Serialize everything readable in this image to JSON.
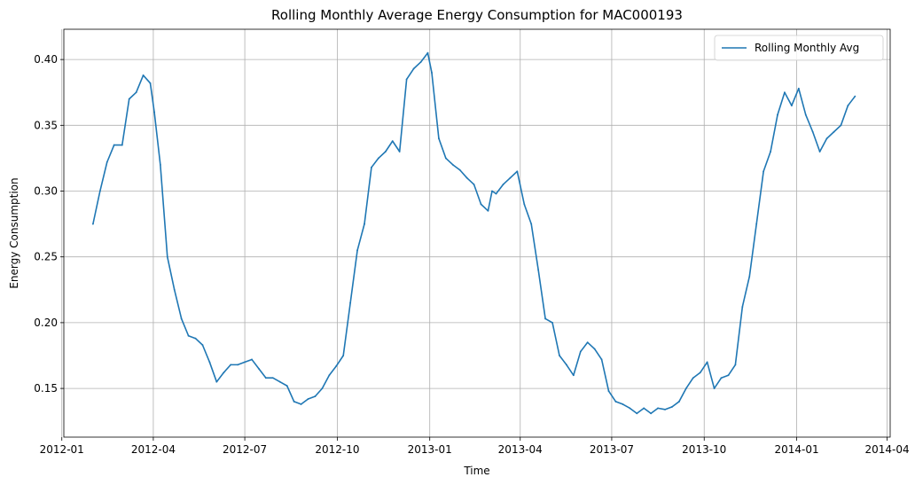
{
  "chart_data": {
    "type": "line",
    "title": "Rolling Monthly Average Energy Consumption for MAC000193",
    "xlabel": "Time",
    "ylabel": "Energy Consumption",
    "grid": true,
    "legend_placement": "top-right",
    "xlim": [
      "2012-01-03",
      "2014-04-04"
    ],
    "ylim": [
      0.113,
      0.423
    ],
    "x_ticks": [
      "2012-01",
      "2012-04",
      "2012-07",
      "2012-10",
      "2013-01",
      "2013-04",
      "2013-07",
      "2013-10",
      "2014-01",
      "2014-04"
    ],
    "y_ticks": [
      0.15,
      0.2,
      0.25,
      0.3,
      0.35,
      0.4
    ],
    "y_tick_labels": [
      "0.15",
      "0.20",
      "0.25",
      "0.30",
      "0.35",
      "0.40"
    ],
    "series": [
      {
        "name": "Rolling Monthly Avg",
        "color": "#1f77b4",
        "x": [
          "2012-02-01",
          "2012-02-08",
          "2012-02-15",
          "2012-02-22",
          "2012-03-01",
          "2012-03-08",
          "2012-03-15",
          "2012-03-22",
          "2012-03-29",
          "2012-04-02",
          "2012-04-08",
          "2012-04-15",
          "2012-04-22",
          "2012-04-29",
          "2012-05-06",
          "2012-05-13",
          "2012-05-20",
          "2012-05-27",
          "2012-06-03",
          "2012-06-10",
          "2012-06-17",
          "2012-06-24",
          "2012-07-01",
          "2012-07-08",
          "2012-07-15",
          "2012-07-22",
          "2012-07-29",
          "2012-08-05",
          "2012-08-12",
          "2012-08-19",
          "2012-08-26",
          "2012-09-02",
          "2012-09-09",
          "2012-09-16",
          "2012-09-23",
          "2012-09-30",
          "2012-10-07",
          "2012-10-14",
          "2012-10-21",
          "2012-10-28",
          "2012-11-04",
          "2012-11-11",
          "2012-11-18",
          "2012-11-25",
          "2012-12-02",
          "2012-12-09",
          "2012-12-16",
          "2012-12-23",
          "2012-12-30",
          "2013-01-03",
          "2013-01-10",
          "2013-01-17",
          "2013-01-24",
          "2013-01-31",
          "2013-02-07",
          "2013-02-14",
          "2013-02-21",
          "2013-02-28",
          "2013-03-04",
          "2013-03-08",
          "2013-03-15",
          "2013-03-22",
          "2013-03-29",
          "2013-04-05",
          "2013-04-12",
          "2013-04-19",
          "2013-04-26",
          "2013-05-03",
          "2013-05-10",
          "2013-05-17",
          "2013-05-24",
          "2013-05-31",
          "2013-06-07",
          "2013-06-14",
          "2013-06-21",
          "2013-06-28",
          "2013-07-05",
          "2013-07-12",
          "2013-07-19",
          "2013-07-26",
          "2013-08-02",
          "2013-08-09",
          "2013-08-16",
          "2013-08-23",
          "2013-08-30",
          "2013-09-06",
          "2013-09-13",
          "2013-09-20",
          "2013-09-27",
          "2013-10-04",
          "2013-10-11",
          "2013-10-18",
          "2013-10-25",
          "2013-11-01",
          "2013-11-08",
          "2013-11-15",
          "2013-11-22",
          "2013-11-29",
          "2013-12-06",
          "2013-12-13",
          "2013-12-20",
          "2013-12-27",
          "2014-01-03",
          "2014-01-10",
          "2014-01-17",
          "2014-01-24",
          "2014-01-31",
          "2014-02-07",
          "2014-02-14",
          "2014-02-21",
          "2014-02-28"
        ],
        "y": [
          0.275,
          0.3,
          0.322,
          0.335,
          0.335,
          0.37,
          0.375,
          0.388,
          0.382,
          0.36,
          0.32,
          0.25,
          0.225,
          0.203,
          0.19,
          0.188,
          0.183,
          0.17,
          0.155,
          0.162,
          0.168,
          0.168,
          0.17,
          0.172,
          0.165,
          0.158,
          0.158,
          0.155,
          0.152,
          0.14,
          0.138,
          0.142,
          0.144,
          0.15,
          0.16,
          0.167,
          0.175,
          0.215,
          0.255,
          0.275,
          0.318,
          0.325,
          0.33,
          0.338,
          0.33,
          0.385,
          0.393,
          0.398,
          0.405,
          0.39,
          0.34,
          0.325,
          0.32,
          0.316,
          0.31,
          0.305,
          0.29,
          0.285,
          0.3,
          0.298,
          0.305,
          0.31,
          0.315,
          0.29,
          0.275,
          0.24,
          0.203,
          0.2,
          0.175,
          0.168,
          0.16,
          0.178,
          0.185,
          0.18,
          0.172,
          0.148,
          0.14,
          0.138,
          0.135,
          0.131,
          0.135,
          0.131,
          0.135,
          0.134,
          0.136,
          0.14,
          0.15,
          0.158,
          0.162,
          0.17,
          0.15,
          0.158,
          0.16,
          0.168,
          0.212,
          0.235,
          0.275,
          0.315,
          0.33,
          0.358,
          0.375,
          0.365,
          0.378,
          0.358,
          0.345,
          0.33,
          0.34,
          0.345,
          0.35,
          0.365,
          0.372
        ]
      }
    ]
  }
}
